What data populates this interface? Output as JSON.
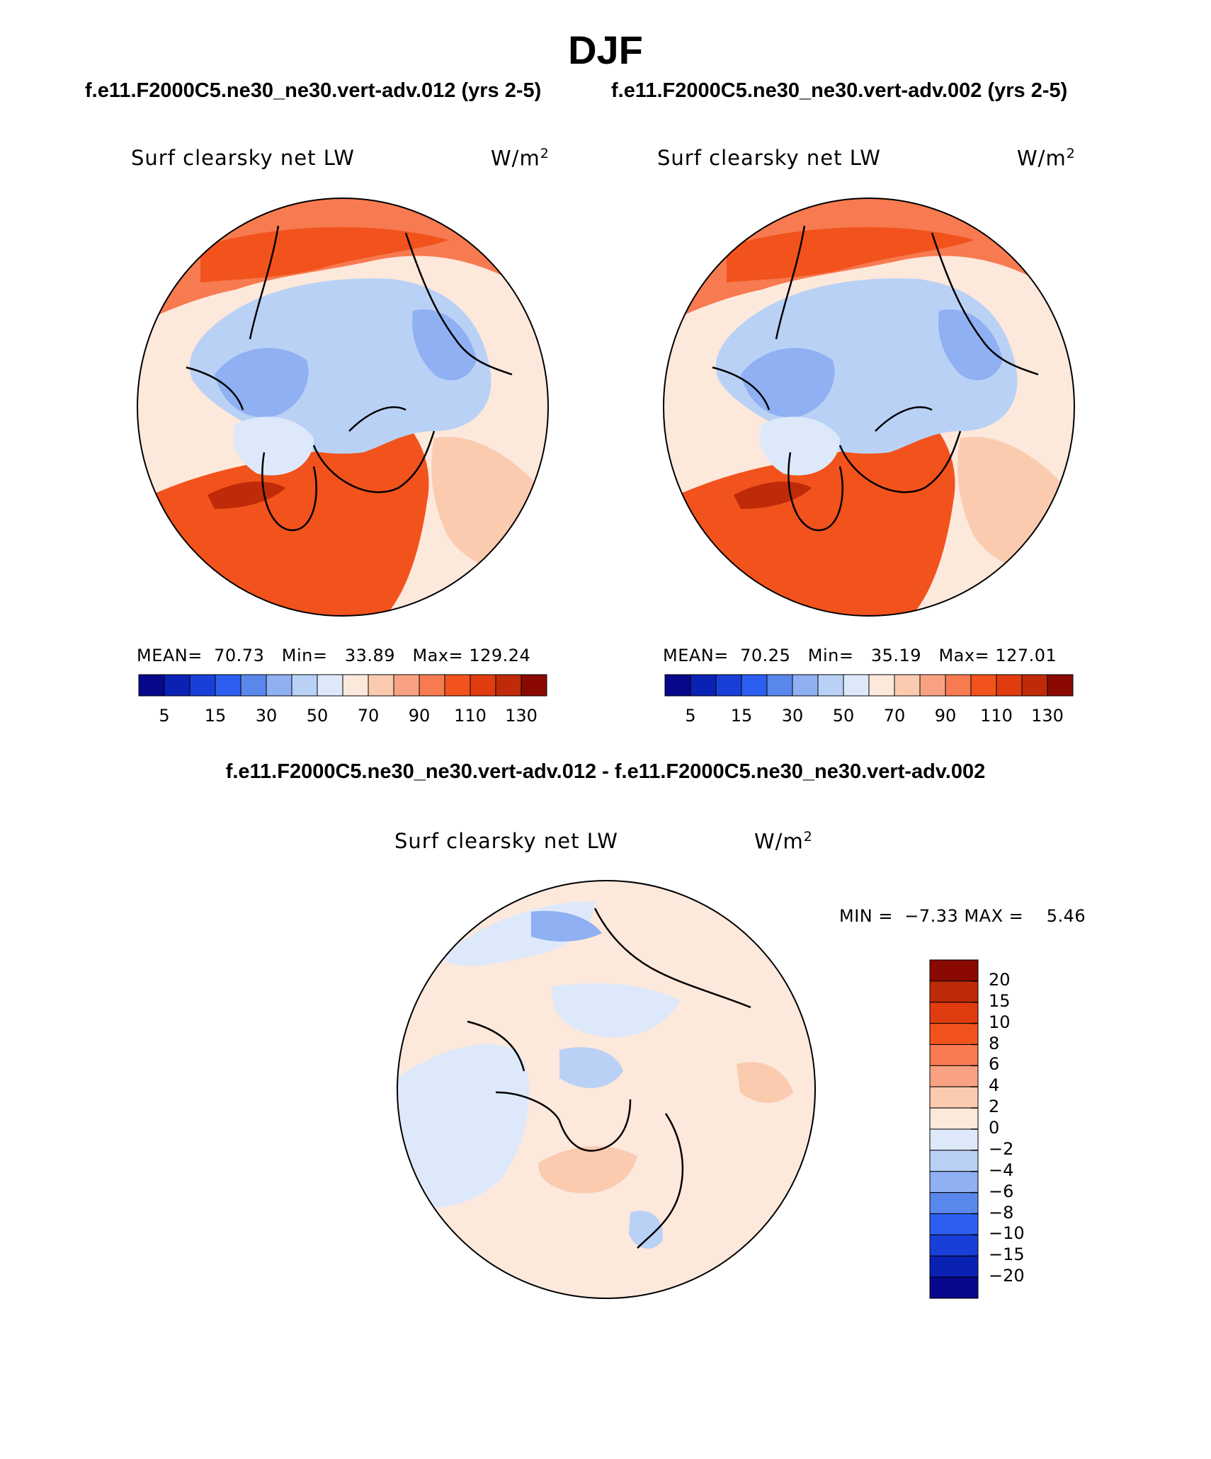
{
  "season": "DJF",
  "case_left": "f.e11.F2000C5.ne30_ne30.vert-adv.012 (yrs 2-5)",
  "case_right": "f.e11.F2000C5.ne30_ne30.vert-adv.002 (yrs 2-5)",
  "diff_title": "f.e11.F2000C5.ne30_ne30.vert-adv.012 - f.e11.F2000C5.ne30_ne30.vert-adv.002",
  "panels": {
    "left": {
      "variable": "Surf clearsky net LW",
      "units_base": "W/m",
      "units_exp": "2",
      "mean_label": "MEAN=",
      "mean": "70.73",
      "min_label": "Min=",
      "min": "33.89",
      "max_label": "Max=",
      "max": "129.24"
    },
    "right": {
      "variable": "Surf clearsky net LW",
      "units_base": "W/m",
      "units_exp": "2",
      "mean_label": "MEAN=",
      "mean": "70.25",
      "min_label": "Min=",
      "min": "35.19",
      "max_label": "Max=",
      "max": "127.01"
    },
    "diff": {
      "variable": "Surf clearsky net LW",
      "units_base": "W/m",
      "units_exp": "2",
      "min_label": "MIN =",
      "min": "−7.33",
      "max_label": "MAX =",
      "max": "5.46"
    }
  },
  "colorbar_abs": {
    "colors": [
      "#08088c",
      "#0a22b4",
      "#1a3fd8",
      "#2c5ff0",
      "#5a87ec",
      "#8fb0f2",
      "#bad1f6",
      "#dde9fa",
      "#fde8dc",
      "#fbcbb0",
      "#f9a283",
      "#f77a50",
      "#f2521c",
      "#e03c10",
      "#bf2a08",
      "#8a0a02"
    ],
    "labels": [
      "5",
      "15",
      "30",
      "50",
      "70",
      "90",
      "110",
      "130"
    ]
  },
  "colorbar_diff": {
    "colors_top_to_bottom": [
      "#8a0a02",
      "#bf2a08",
      "#e03c10",
      "#f2521c",
      "#f77a50",
      "#f9a283",
      "#fbcbb0",
      "#fde8dc",
      "#dde9fa",
      "#bad1f6",
      "#8fb0f2",
      "#5a87ec",
      "#2c5ff0",
      "#1a3fd8",
      "#0a22b4",
      "#08088c"
    ],
    "labels_top_to_bottom": [
      "20",
      "15",
      "10",
      "8",
      "6",
      "4",
      "2",
      "0",
      "−2",
      "−4",
      "−6",
      "−8",
      "−10",
      "−15",
      "−20"
    ]
  },
  "map_colors": {
    "warm_strong": "#f2521c",
    "warm_mid": "#f77a50",
    "warm_light": "#fbcbb0",
    "warm_pale": "#fde8dc",
    "cool_pale": "#dde9fa",
    "cool_light": "#bad1f6",
    "cool_mid": "#8fb0f2",
    "dark_red": "#bf2a08"
  }
}
